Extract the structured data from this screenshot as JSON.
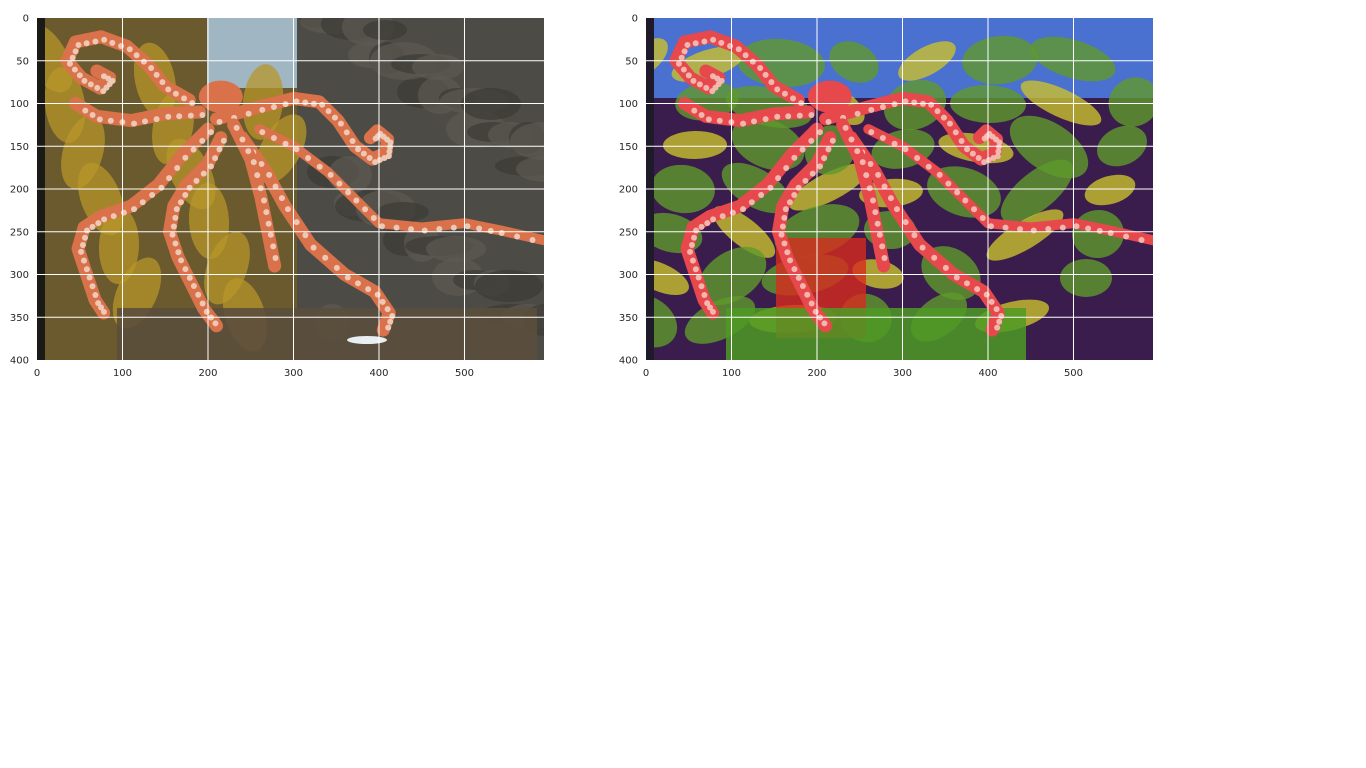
{
  "figure": {
    "panels": [
      {
        "name": "original-photo",
        "content": "photo of a red octopus in an aquarium with kelp and rocks",
        "colors": {
          "octopus": "#d9714a",
          "suckers": "#f0d2c0",
          "kelp": "#b7962a",
          "rock": "#4d4b45",
          "water": "#a9c7dc",
          "dark": "#1b1a16"
        },
        "x_ticks": [
          "0",
          "100",
          "200",
          "300",
          "400",
          "500"
        ],
        "y_ticks": [
          "0",
          "50",
          "100",
          "150",
          "200",
          "250",
          "300",
          "350",
          "400"
        ],
        "xlim": [
          0,
          593
        ],
        "ylim": [
          400,
          0
        ],
        "grid": true
      },
      {
        "name": "stylized-painting",
        "content": "painterly style-transferred version of the octopus image",
        "colors": {
          "octopus": "#e6484c",
          "suckers": "#f4c2b8",
          "foliage": "#5f9a2c",
          "sky": "#4a70d0",
          "purple": "#3b1d4d",
          "yellow": "#c9c12e",
          "dark": "#1f1a2a"
        },
        "x_ticks": [
          "0",
          "100",
          "200",
          "300",
          "400",
          "500"
        ],
        "y_ticks": [
          "0",
          "50",
          "100",
          "150",
          "200",
          "250",
          "300",
          "350",
          "400"
        ],
        "xlim": [
          0,
          593
        ],
        "ylim": [
          400,
          0
        ],
        "grid": true
      }
    ]
  }
}
